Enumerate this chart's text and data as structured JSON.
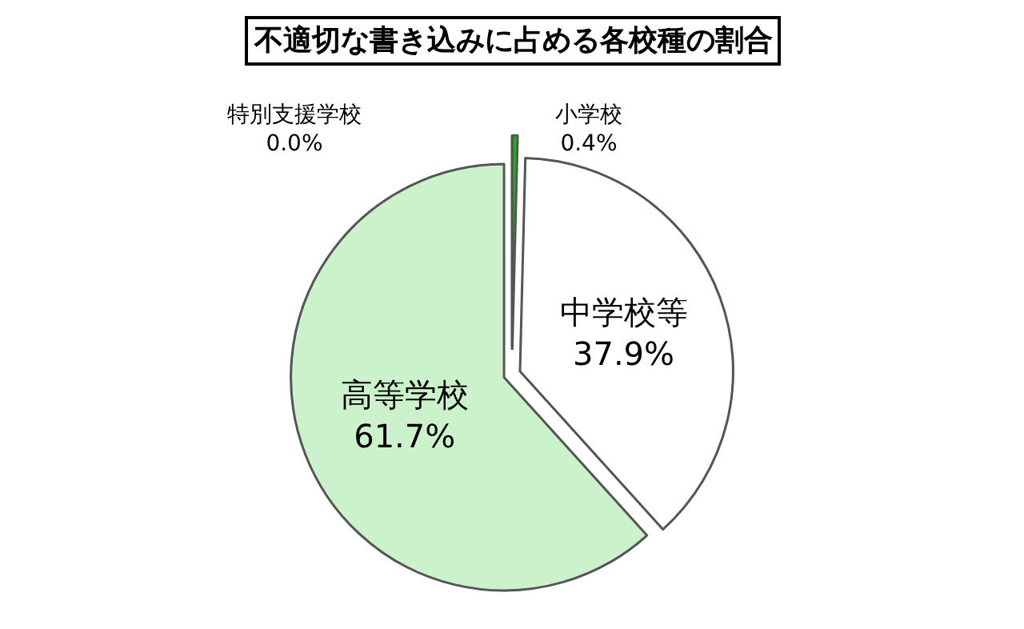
{
  "chart_data": {
    "type": "pie",
    "title": "不適切な書き込みに占める各校種の割合",
    "categories": [
      "小学校",
      "中学校等",
      "高等学校",
      "特別支援学校"
    ],
    "values": [
      0.4,
      37.9,
      61.7,
      0.0
    ],
    "value_labels": [
      "0.4%",
      "37.9%",
      "61.7%",
      "0.0%"
    ],
    "colors": [
      "#22b022",
      "#ffffff",
      "#ccf2cc",
      "#999999"
    ],
    "legend": false
  }
}
